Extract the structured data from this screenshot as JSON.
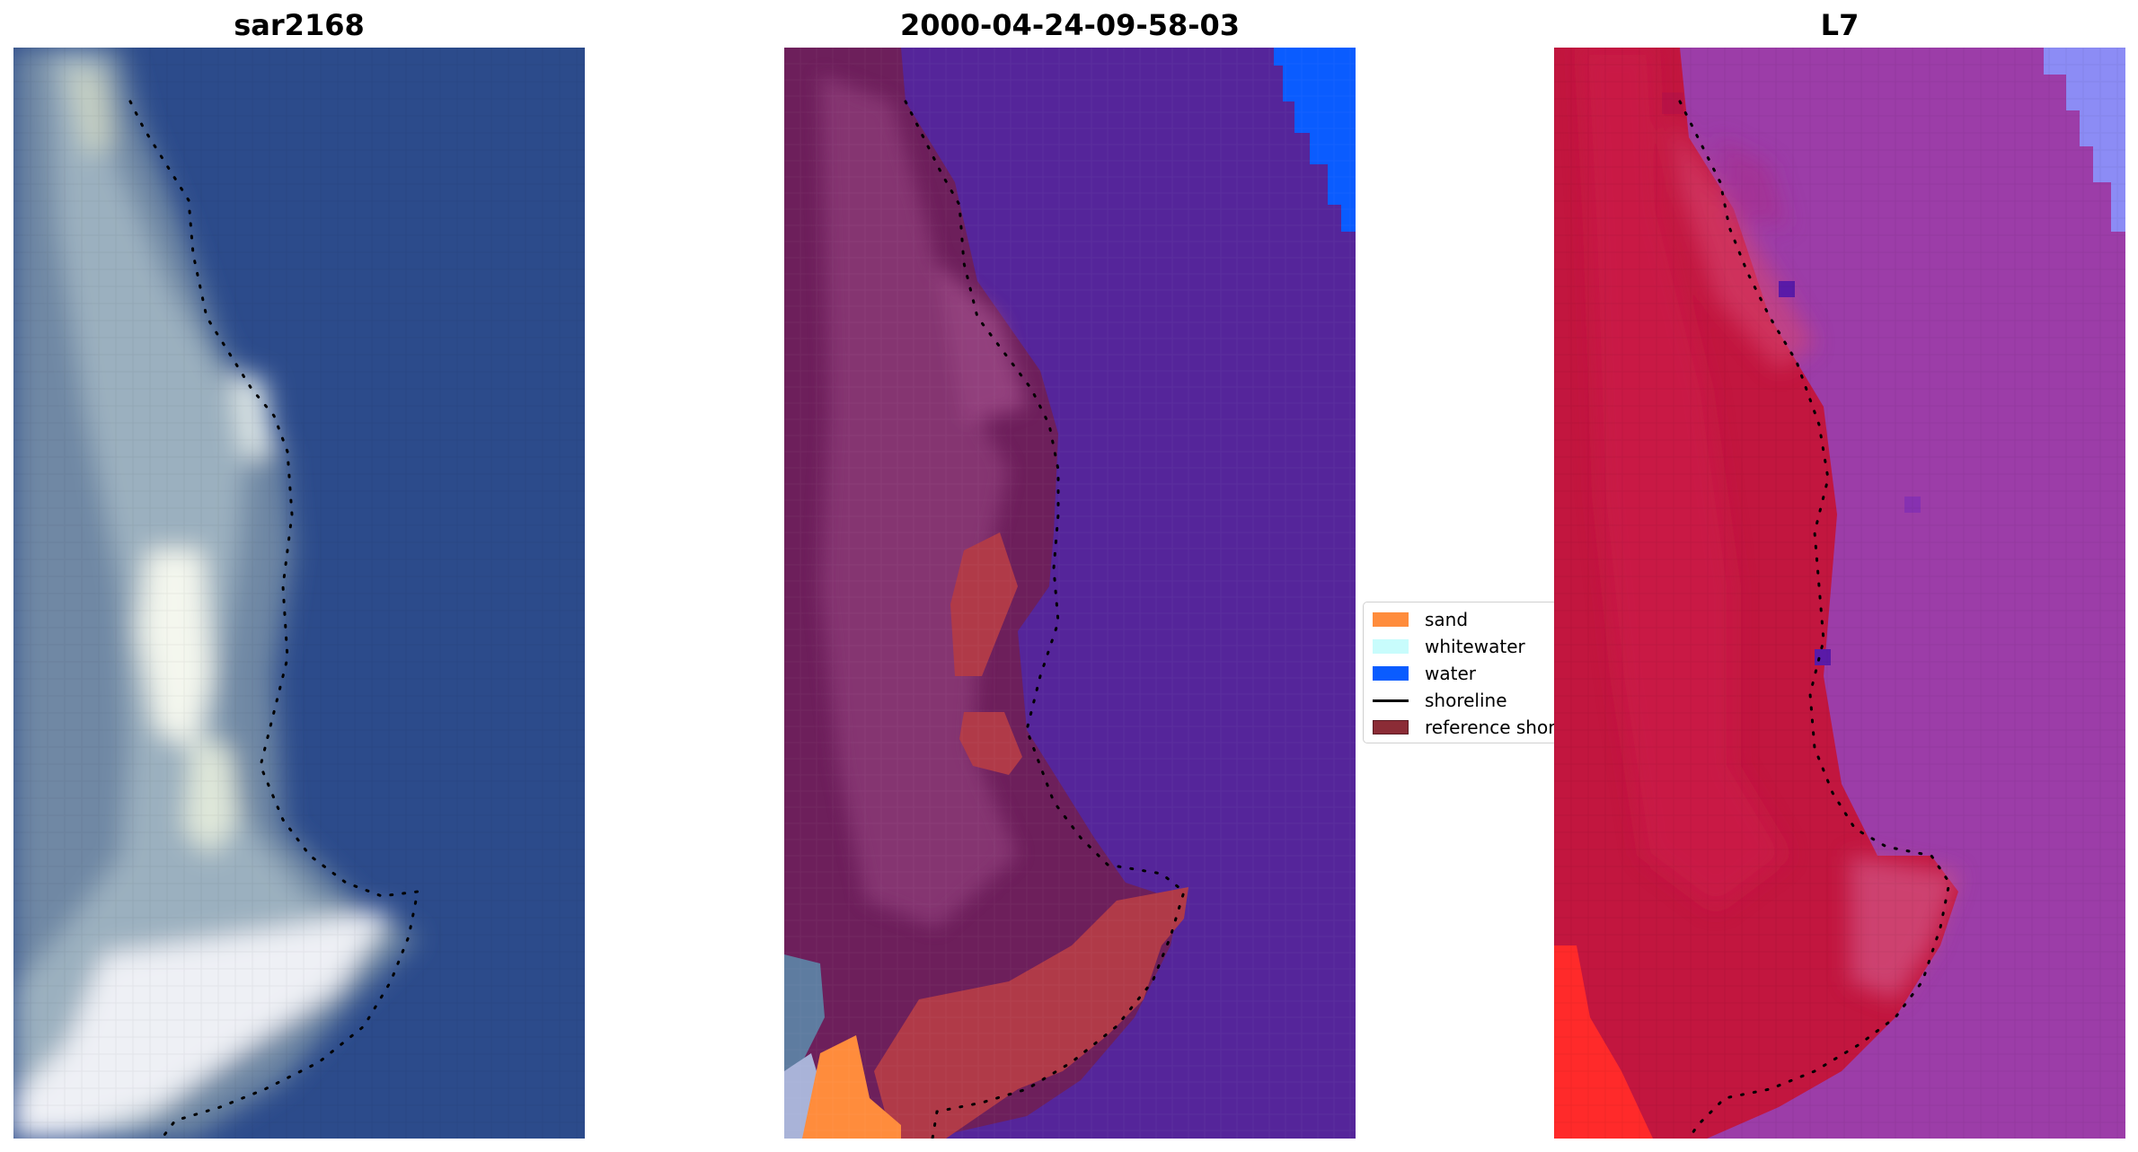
{
  "panels": {
    "left_title": "sar2168",
    "middle_title": "2000-04-24-09-58-03",
    "right_title": "L7"
  },
  "legend": {
    "items": [
      {
        "label": "sand",
        "color": "#ff8c3c",
        "kind": "patch"
      },
      {
        "label": "whitewater",
        "color": "#c8fcfc",
        "kind": "patch"
      },
      {
        "label": "water",
        "color": "#0a5cff",
        "kind": "patch"
      },
      {
        "label": "shoreline",
        "color": "#000000",
        "kind": "line"
      },
      {
        "label": "reference shoreline",
        "color": "#8b2c36",
        "kind": "patch"
      }
    ]
  },
  "colors": {
    "sar_water": "#2b4a8a",
    "sar_land": "#6f8aa8",
    "sar_bright": "#e6edf0",
    "classified_water": "#55259a",
    "classified_land": "#6f1f5a",
    "classified_ref": "#b03a48",
    "l7_land": "#c0143c",
    "l7_water": "#9a3ca8",
    "l7_shallow": "#8c8cf5"
  }
}
